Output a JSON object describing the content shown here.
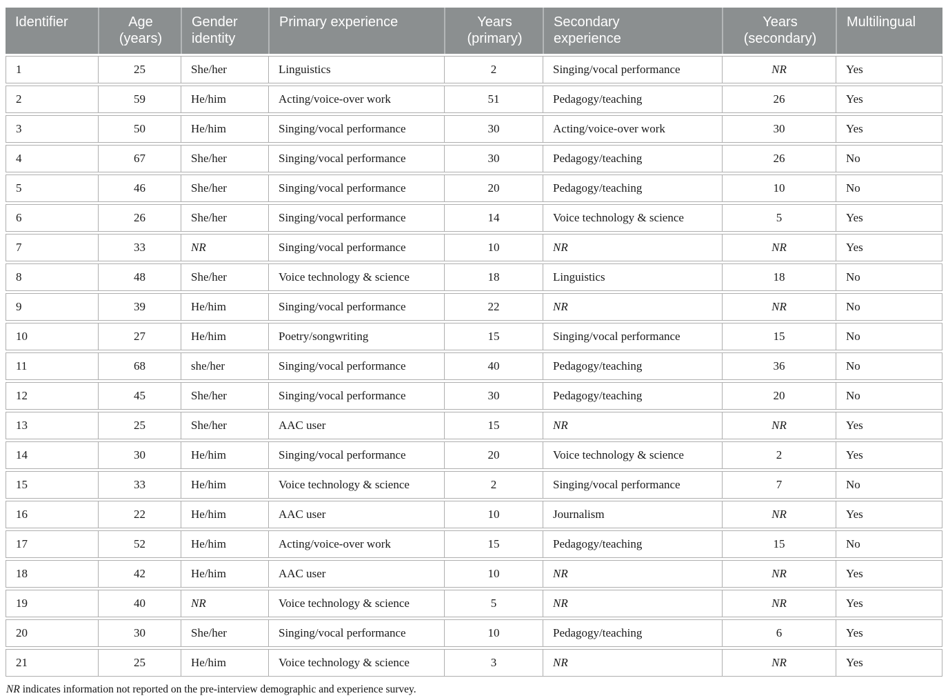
{
  "colors": {
    "header_background": "#8b8f90",
    "header_text": "#ffffff",
    "header_divider": "#b4b7b8",
    "cell_border": "#aeaeae",
    "body_text": "#1a1a1a"
  },
  "table": {
    "columns": [
      {
        "label": "Identifier",
        "align": "left"
      },
      {
        "label": "Age\n(years)",
        "align": "center"
      },
      {
        "label": "Gender\nidentity",
        "align": "left"
      },
      {
        "label": "Primary experience",
        "align": "left"
      },
      {
        "label": "Years\n(primary)",
        "align": "center"
      },
      {
        "label": "Secondary\nexperience",
        "align": "left"
      },
      {
        "label": "Years\n(secondary)",
        "align": "center"
      },
      {
        "label": "Multilingual",
        "align": "left"
      }
    ],
    "not_reported_marker": "NR",
    "rows": [
      [
        "1",
        "25",
        "She/her",
        "Linguistics",
        "2",
        "Singing/vocal performance",
        "NR",
        "Yes"
      ],
      [
        "2",
        "59",
        "He/him",
        "Acting/voice-over work",
        "51",
        "Pedagogy/teaching",
        "26",
        "Yes"
      ],
      [
        "3",
        "50",
        "He/him",
        "Singing/vocal performance",
        "30",
        "Acting/voice-over work",
        "30",
        "Yes"
      ],
      [
        "4",
        "67",
        "She/her",
        "Singing/vocal performance",
        "30",
        "Pedagogy/teaching",
        "26",
        "No"
      ],
      [
        "5",
        "46",
        "She/her",
        "Singing/vocal performance",
        "20",
        "Pedagogy/teaching",
        "10",
        "No"
      ],
      [
        "6",
        "26",
        "She/her",
        "Singing/vocal performance",
        "14",
        "Voice technology & science",
        "5",
        "Yes"
      ],
      [
        "7",
        "33",
        "NR",
        "Singing/vocal performance",
        "10",
        "NR",
        "NR",
        "Yes"
      ],
      [
        "8",
        "48",
        "She/her",
        "Voice technology & science",
        "18",
        "Linguistics",
        "18",
        "No"
      ],
      [
        "9",
        "39",
        "He/him",
        "Singing/vocal performance",
        "22",
        "NR",
        "NR",
        "No"
      ],
      [
        "10",
        "27",
        "He/him",
        "Poetry/songwriting",
        "15",
        "Singing/vocal performance",
        "15",
        "No"
      ],
      [
        "11",
        "68",
        "she/her",
        "Singing/vocal performance",
        "40",
        "Pedagogy/teaching",
        "36",
        "No"
      ],
      [
        "12",
        "45",
        "She/her",
        "Singing/vocal performance",
        "30",
        "Pedagogy/teaching",
        "20",
        "No"
      ],
      [
        "13",
        "25",
        "She/her",
        "AAC user",
        "15",
        "NR",
        "NR",
        "Yes"
      ],
      [
        "14",
        "30",
        "He/him",
        "Singing/vocal performance",
        "20",
        "Voice technology & science",
        "2",
        "Yes"
      ],
      [
        "15",
        "33",
        "He/him",
        "Voice technology & science",
        "2",
        "Singing/vocal performance",
        "7",
        "No"
      ],
      [
        "16",
        "22",
        "He/him",
        "AAC user",
        "10",
        "Journalism",
        "NR",
        "Yes"
      ],
      [
        "17",
        "52",
        "He/him",
        "Acting/voice-over work",
        "15",
        "Pedagogy/teaching",
        "15",
        "No"
      ],
      [
        "18",
        "42",
        "He/him",
        "AAC user",
        "10",
        "NR",
        "NR",
        "Yes"
      ],
      [
        "19",
        "40",
        "NR",
        "Voice technology & science",
        "5",
        "NR",
        "NR",
        "Yes"
      ],
      [
        "20",
        "30",
        "She/her",
        "Singing/vocal performance",
        "10",
        "Pedagogy/teaching",
        "6",
        "Yes"
      ],
      [
        "21",
        "25",
        "He/him",
        "Voice technology & science",
        "3",
        "NR",
        "NR",
        "Yes"
      ]
    ],
    "footnote": {
      "italic_marker": "NR",
      "text": " indicates information not reported on the pre-interview demographic and experience survey."
    }
  }
}
